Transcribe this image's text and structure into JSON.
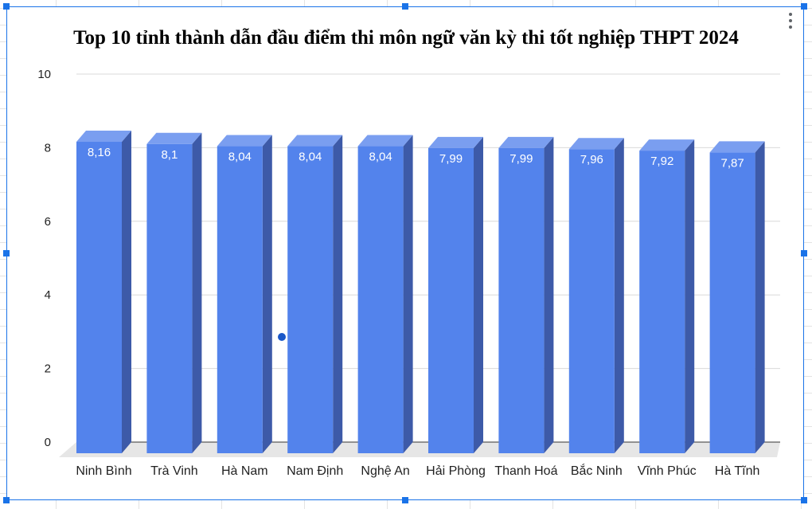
{
  "chart_data": {
    "type": "bar",
    "title": "Top 10 tỉnh thành dẫn đầu điểm thi môn ngữ văn kỳ thi tốt nghiệp THPT 2024",
    "categories": [
      "Ninh Bình",
      "Trà Vinh",
      "Hà Nam",
      "Nam Định",
      "Nghệ An",
      "Hải Phòng",
      "Thanh Hoá",
      "Bắc Ninh",
      "Vĩnh Phúc",
      "Hà Tĩnh"
    ],
    "values": [
      8.16,
      8.1,
      8.04,
      8.04,
      8.04,
      7.99,
      7.99,
      7.96,
      7.92,
      7.87
    ],
    "value_labels": [
      "8,16",
      "8,1",
      "8,04",
      "8,04",
      "8,04",
      "7,99",
      "7,99",
      "7,96",
      "7,92",
      "7,87"
    ],
    "y_ticks": [
      "0",
      "2",
      "4",
      "6",
      "8",
      "10"
    ],
    "ylim": [
      0,
      10
    ],
    "grid": true,
    "legend": "none",
    "bar_color": "#5383ec",
    "bar_side_color": "#3d5aa8",
    "bar_top_color": "#7a9ef0"
  }
}
